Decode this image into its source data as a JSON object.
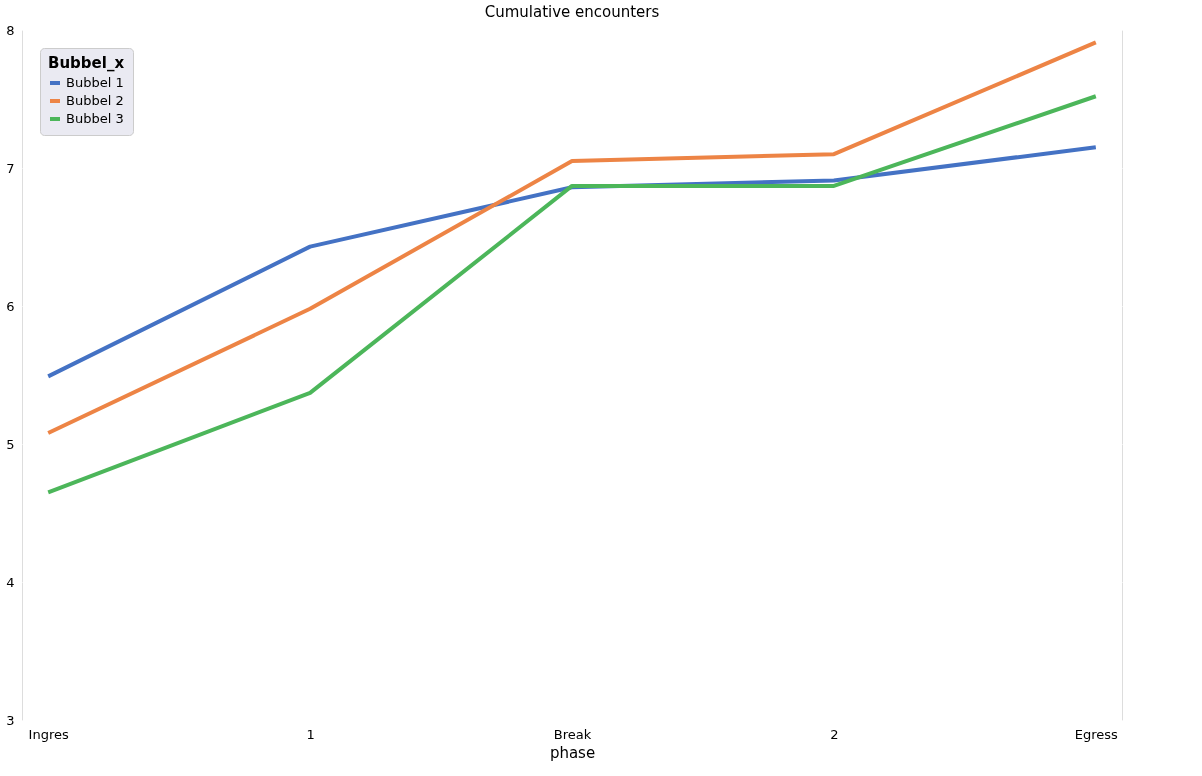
{
  "chart_data": {
    "type": "line",
    "title": "Cumulative encounters",
    "xlabel": "phase",
    "legend_title": "Bubbel_x",
    "categories": [
      "Ingres",
      "1",
      "Break",
      "2",
      "Egress"
    ],
    "series": [
      {
        "name": "Bubbel 1",
        "color": "#4472c4",
        "values": [
          5.49,
          6.43,
          6.86,
          6.91,
          7.15
        ]
      },
      {
        "name": "Bubbel 2",
        "color": "#ed8445",
        "values": [
          5.08,
          5.98,
          7.05,
          7.1,
          7.91
        ]
      },
      {
        "name": "Bubbel 3",
        "color": "#4cb65a",
        "values": [
          4.65,
          5.37,
          6.87,
          6.87,
          7.52
        ]
      }
    ],
    "ylim": [
      3,
      8
    ],
    "yticks": [
      3,
      4,
      5,
      6,
      7,
      8
    ],
    "grid": true,
    "legend": "top left",
    "marker": "none",
    "line_style": "solid"
  }
}
